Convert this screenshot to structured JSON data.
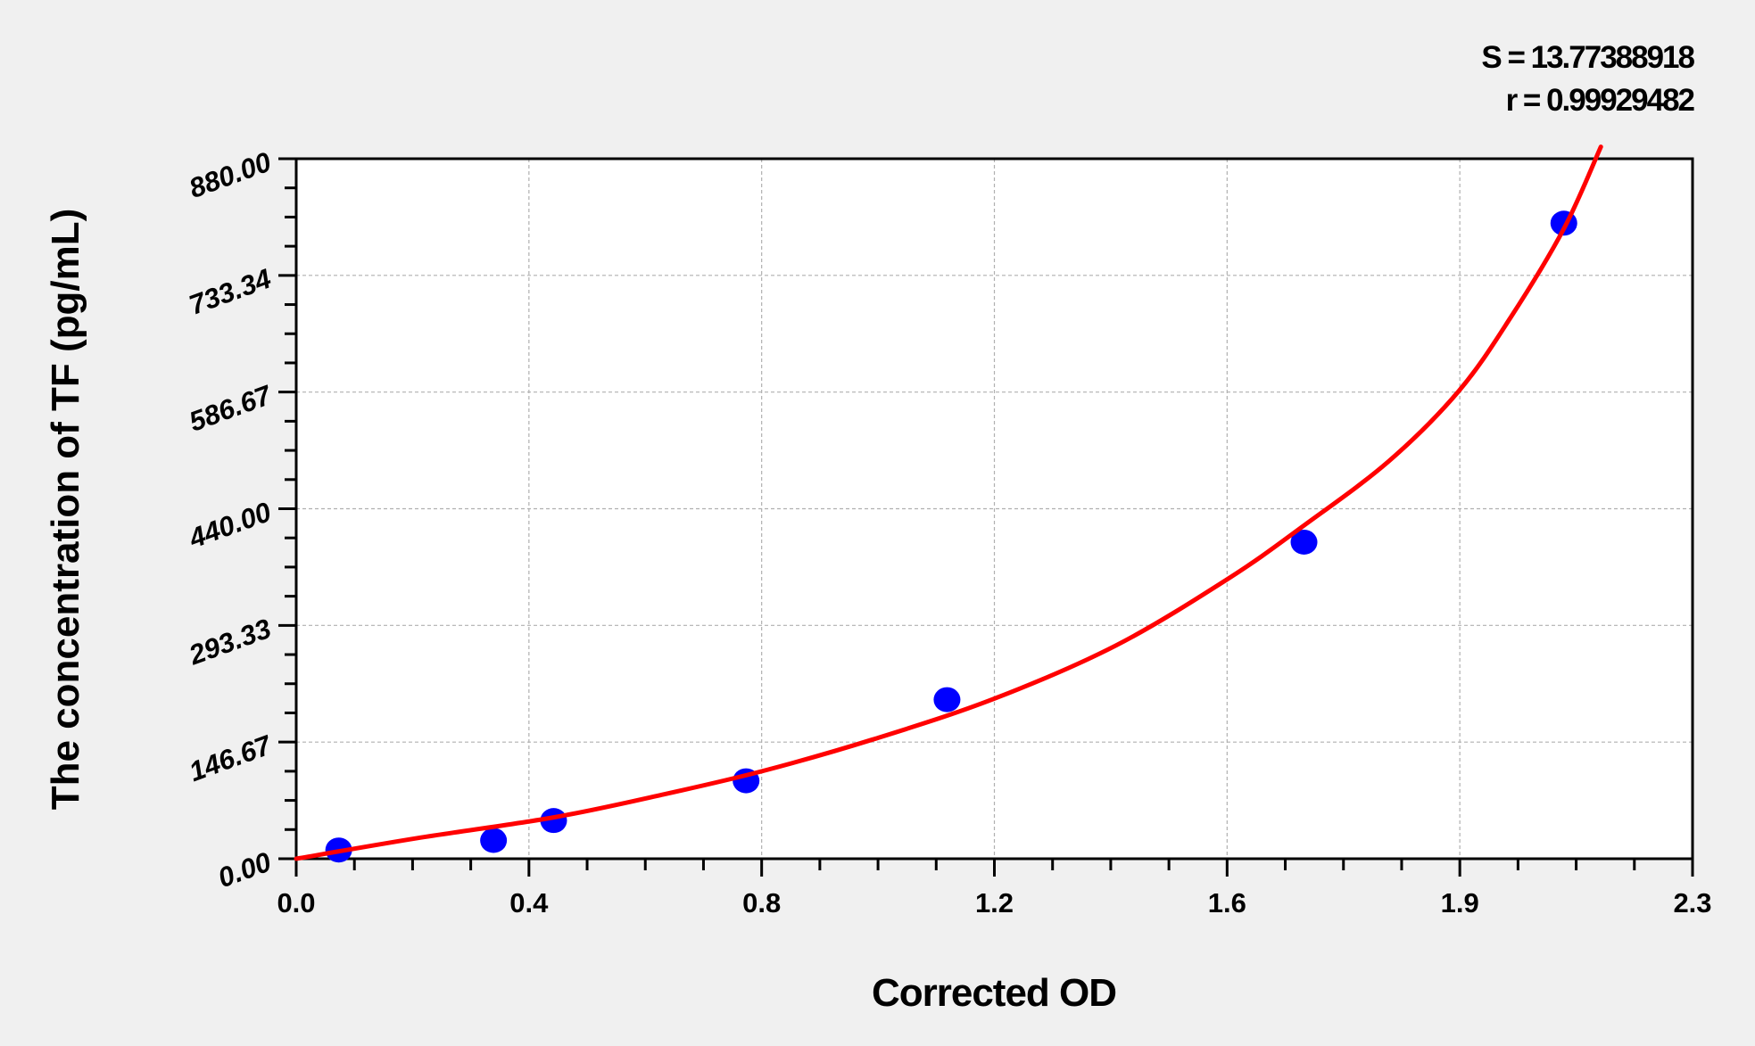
{
  "chart_data": {
    "type": "scatter",
    "title": "",
    "xlabel": "Corrected OD",
    "ylabel": "The concentration of TF (pg/mL)",
    "xlim": [
      0,
      2.3
    ],
    "ylim": [
      0,
      880
    ],
    "x_tick_labels": [
      "0.0",
      "0.4",
      "0.8",
      "1.2",
      "1.6",
      "1.9",
      "2.3"
    ],
    "y_tick_labels": [
      "0.00",
      "146.67",
      "293.33",
      "440.00",
      "586.67",
      "733.34",
      "880.00"
    ],
    "grid": true,
    "annotations": [
      "S = 13.77388918",
      "r = 0.99929482"
    ],
    "points": {
      "x": [
        0.07,
        0.325,
        0.424,
        0.741,
        1.072,
        1.66,
        2.088
      ],
      "y": [
        11,
        23,
        48,
        98,
        200,
        398,
        799
      ],
      "color": "#0000ff"
    },
    "fit_curve": {
      "x": [
        0.0,
        0.2,
        0.424,
        0.6,
        0.767,
        0.95,
        1.149,
        1.35,
        1.535,
        1.66,
        1.8,
        1.915,
        2.0,
        2.088,
        2.149
      ],
      "y": [
        0,
        26,
        52,
        80,
        110,
        150,
        201,
        268,
        352,
        419,
        500,
        588,
        680,
        792,
        895
      ],
      "color": "#ff0000"
    }
  }
}
